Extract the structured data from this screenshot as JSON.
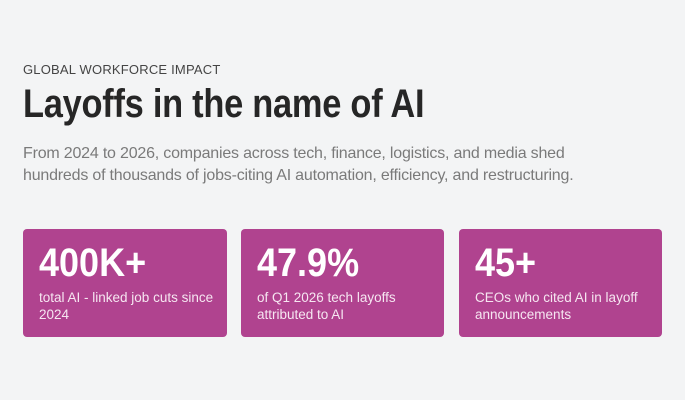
{
  "header": {
    "eyebrow": "GLOBAL WORKFORCE IMPACT",
    "title": "Layoffs in the name of AI",
    "intro": "From 2024 to 2026, companies across tech, finance, logistics, and media shed hundreds of thousands of jobs-citing AI automation, efficiency, and restructuring."
  },
  "stats": [
    {
      "value": "400K+",
      "label": "total AI - linked job cuts since 2024"
    },
    {
      "value": "47.9%",
      "label": "of Q1 2026 tech layoffs attributed to AI"
    },
    {
      "value": "45+",
      "label": "CEOs who cited AI in layoff announcements"
    }
  ],
  "colors": {
    "background": "#f3f4f5",
    "card": "#b0438f"
  }
}
